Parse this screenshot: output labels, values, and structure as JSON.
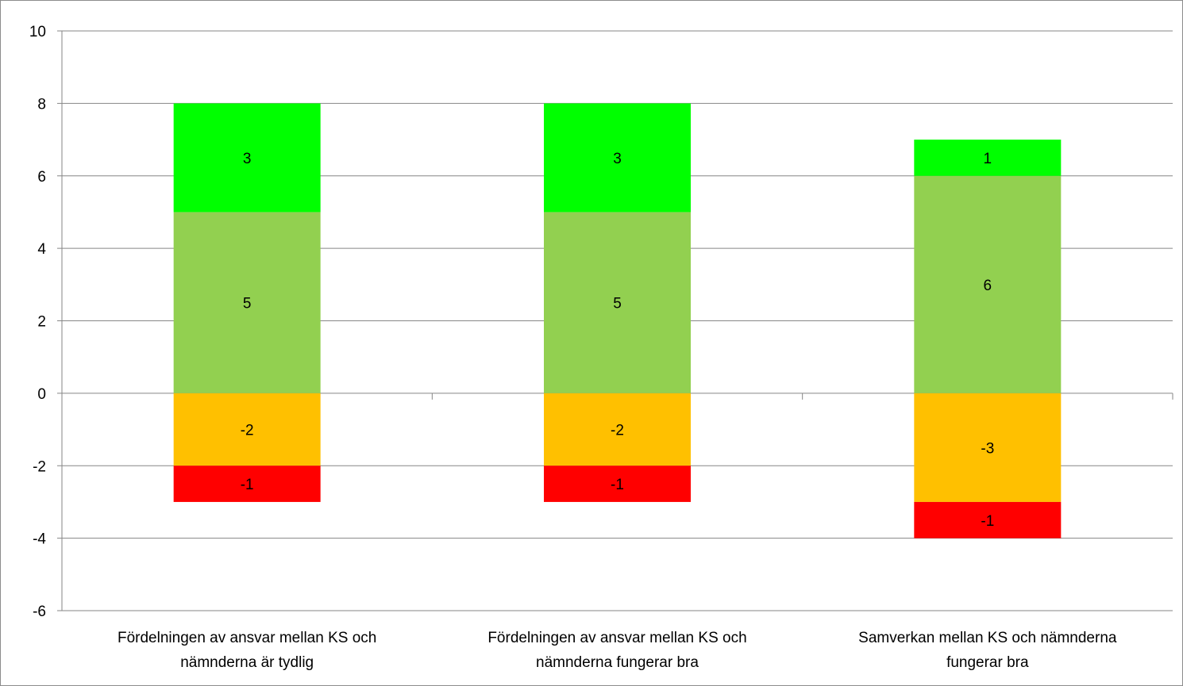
{
  "chart_data": {
    "type": "bar",
    "stacked": true,
    "title": "",
    "xlabel": "",
    "ylabel": "",
    "ylim": [
      -6,
      10
    ],
    "yticks": [
      10,
      8,
      6,
      4,
      2,
      0,
      -2,
      -4,
      -6
    ],
    "grid": true,
    "legend": "none",
    "categories": [
      [
        "Fördelningen av ansvar mellan KS och",
        "nämnderna är tydlig"
      ],
      [
        "Fördelningen av ansvar mellan KS och",
        "nämnderna fungerar bra"
      ],
      [
        "Samverkan mellan KS och nämnderna",
        "fungerar bra"
      ]
    ],
    "series": [
      {
        "color": "#92d050",
        "values": [
          5,
          5,
          6
        ]
      },
      {
        "color": "#00ff00",
        "values": [
          3,
          3,
          1
        ]
      },
      {
        "color": "#ffc000",
        "values": [
          -2,
          -2,
          -3
        ]
      },
      {
        "color": "#ff0000",
        "values": [
          -1,
          -1,
          -1
        ]
      }
    ]
  }
}
